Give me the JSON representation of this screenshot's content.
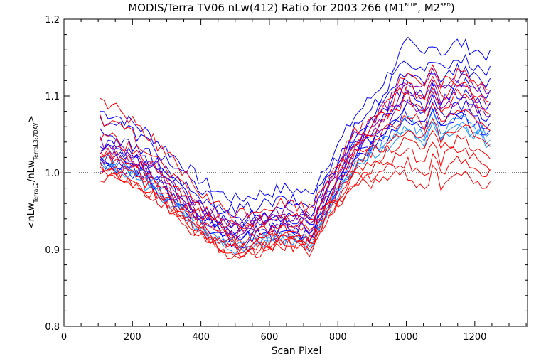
{
  "chart_data": {
    "type": "line",
    "title": {
      "main": "MODIS/Terra TV06 nLw(412) Ratio for 2003 266 (M1",
      "sup1": "BLUE",
      "mid": ", M2",
      "sup2": "RED",
      "end": ")"
    },
    "xlabel": "Scan Pixel",
    "ylabel": {
      "open": "<nLw",
      "sub1": "TerraL2",
      "slash": "/nLw",
      "sub2": "TerraL3:7DAY",
      "close": ">"
    },
    "xlim": [
      0,
      1354
    ],
    "ylim": [
      0.8,
      1.2
    ],
    "xticks": [
      0,
      200,
      400,
      600,
      800,
      1000,
      1200
    ],
    "xtick_labels": [
      "0",
      "200",
      "400",
      "600",
      "800",
      "1000",
      "1200"
    ],
    "yticks": [
      0.8,
      0.9,
      1.0,
      1.1,
      1.2
    ],
    "ytick_labels": [
      "0.8",
      "0.9",
      "1.0",
      "1.1",
      "1.2"
    ],
    "reference_line": {
      "y": 1.0,
      "style": "dotted"
    },
    "colors": {
      "M1": "#0000ff",
      "M2": "#ff0000",
      "light": "#1e90ff",
      "purple": "#8000a0"
    },
    "profile": {
      "x": [
        105,
        150,
        200,
        250,
        300,
        350,
        400,
        450,
        500,
        550,
        600,
        650,
        700,
        720,
        750,
        800,
        850,
        900,
        950,
        1000,
        1050,
        1080,
        1100,
        1150,
        1200,
        1250
      ],
      "y": [
        1.02,
        1.015,
        1.005,
        0.99,
        0.97,
        0.95,
        0.93,
        0.915,
        0.905,
        0.91,
        0.915,
        0.92,
        0.915,
        0.91,
        0.94,
        0.975,
        1.01,
        1.025,
        1.04,
        1.06,
        1.04,
        1.065,
        1.045,
        1.06,
        1.05,
        1.04
      ]
    },
    "series": [
      {
        "color": "M1",
        "start": 1.08,
        "offset": 0.09,
        "center": 0.965,
        "right": 0.11
      },
      {
        "color": "M1",
        "start": 1.07,
        "offset": 0.07,
        "center": 0.95,
        "right": 0.09
      },
      {
        "color": "M1",
        "start": 1.05,
        "offset": 0.05,
        "center": 0.94,
        "right": 0.075
      },
      {
        "color": "M1",
        "start": 1.04,
        "offset": 0.04,
        "center": 0.93,
        "right": 0.06
      },
      {
        "color": "M1",
        "start": 1.03,
        "offset": 0.03,
        "center": 0.925,
        "right": 0.045
      },
      {
        "color": "M1",
        "start": 1.02,
        "offset": 0.02,
        "center": 0.918,
        "right": 0.03
      },
      {
        "color": "M1",
        "start": 1.015,
        "offset": 0.012,
        "center": 0.912,
        "right": 0.02
      },
      {
        "color": "M1",
        "start": 1.01,
        "offset": 0.005,
        "center": 0.908,
        "right": 0.012
      },
      {
        "color": "light",
        "start": 1.02,
        "offset": 0.0,
        "center": 0.905,
        "right": 0.0
      },
      {
        "color": "light",
        "start": 1.015,
        "offset": -0.005,
        "center": 0.902,
        "right": -0.005
      },
      {
        "color": "light",
        "start": 1.01,
        "offset": -0.01,
        "center": 0.9,
        "right": 0.01
      },
      {
        "color": "purple",
        "start": 1.04,
        "offset": 0.035,
        "center": 0.935,
        "right": 0.065
      },
      {
        "color": "purple",
        "start": 1.03,
        "offset": 0.025,
        "center": 0.928,
        "right": 0.05
      },
      {
        "color": "purple",
        "start": 1.02,
        "offset": 0.015,
        "center": 0.92,
        "right": 0.035
      },
      {
        "color": "M2",
        "start": 1.095,
        "offset": 0.075,
        "center": 0.945,
        "right": 0.07
      },
      {
        "color": "M2",
        "start": 1.07,
        "offset": 0.05,
        "center": 0.93,
        "right": 0.055
      },
      {
        "color": "M2",
        "start": 1.05,
        "offset": 0.03,
        "center": 0.92,
        "right": 0.04
      },
      {
        "color": "M2",
        "start": 1.03,
        "offset": 0.015,
        "center": 0.912,
        "right": 0.02
      },
      {
        "color": "M2",
        "start": 1.02,
        "offset": 0.0,
        "center": 0.905,
        "right": 0.0
      },
      {
        "color": "M2",
        "start": 1.01,
        "offset": -0.01,
        "center": 0.9,
        "right": -0.015
      },
      {
        "color": "M2",
        "start": 1.0,
        "offset": -0.02,
        "center": 0.895,
        "right": -0.03
      },
      {
        "color": "M2",
        "start": 0.995,
        "offset": -0.025,
        "center": 0.892,
        "right": -0.045
      },
      {
        "color": "M2",
        "start": 1.0,
        "offset": -0.015,
        "center": 0.897,
        "right": -0.06
      }
    ]
  }
}
